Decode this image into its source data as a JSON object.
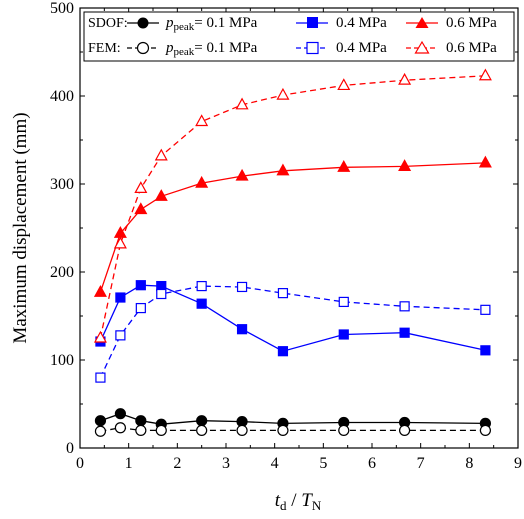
{
  "chart_data": {
    "type": "line",
    "xlabel_main": "t",
    "xlabel_sub1": "d",
    "xlabel_sep": " / ",
    "xlabel_main2": "T",
    "xlabel_sub2": "N",
    "ylabel": "Maximum displacement (mm)",
    "xlim": [
      0,
      9
    ],
    "ylim": [
      0,
      500
    ],
    "xticks": [
      0,
      1,
      2,
      3,
      4,
      5,
      6,
      7,
      8,
      9
    ],
    "yticks": [
      0,
      100,
      200,
      300,
      400,
      500
    ],
    "grid": false,
    "legend_position": "top",
    "legend": {
      "row1_head": "SDOF:",
      "row2_head": "FEM:",
      "p_main": "p",
      "p_sub": "peak",
      "p_eq": "= 0.1 MPa",
      "label_04": "0.4 MPa",
      "label_06": "0.6 MPa"
    },
    "series": [
      {
        "method": "SDOF",
        "pressure": "0.1 MPa",
        "color": "#000000",
        "marker": "circle",
        "filled": true,
        "dashed": false,
        "x": [
          0.42,
          0.83,
          1.25,
          1.67,
          2.5,
          3.33,
          4.17,
          5.42,
          6.67,
          8.33
        ],
        "y": [
          31,
          39,
          31,
          27,
          31,
          30,
          28,
          29,
          29,
          28
        ]
      },
      {
        "method": "SDOF",
        "pressure": "0.4 MPa",
        "color": "#0000ff",
        "marker": "square",
        "filled": true,
        "dashed": false,
        "x": [
          0.42,
          0.83,
          1.25,
          1.67,
          2.5,
          3.33,
          4.17,
          5.42,
          6.67,
          8.33
        ],
        "y": [
          121,
          171,
          185,
          184,
          164,
          135,
          110,
          129,
          131,
          111
        ]
      },
      {
        "method": "SDOF",
        "pressure": "0.6 MPa",
        "color": "#ff0000",
        "marker": "triangle",
        "filled": true,
        "dashed": false,
        "x": [
          0.42,
          0.83,
          1.25,
          1.67,
          2.5,
          3.33,
          4.17,
          5.42,
          6.67,
          8.33
        ],
        "y": [
          177,
          244,
          271,
          286,
          301,
          309,
          315,
          319,
          320,
          324
        ]
      },
      {
        "method": "FEM",
        "pressure": "0.1 MPa",
        "color": "#000000",
        "marker": "circle",
        "filled": false,
        "dashed": true,
        "x": [
          0.42,
          0.83,
          1.25,
          1.67,
          2.5,
          3.33,
          4.17,
          5.42,
          6.67,
          8.33
        ],
        "y": [
          19,
          23,
          20,
          20,
          20,
          20,
          20,
          20,
          20,
          20
        ]
      },
      {
        "method": "FEM",
        "pressure": "0.4 MPa",
        "color": "#0000ff",
        "marker": "square",
        "filled": false,
        "dashed": true,
        "x": [
          0.42,
          0.83,
          1.25,
          1.67,
          2.5,
          3.33,
          4.17,
          5.42,
          6.67,
          8.33
        ],
        "y": [
          80,
          128,
          159,
          175,
          184,
          183,
          176,
          166,
          161,
          157
        ]
      },
      {
        "method": "FEM",
        "pressure": "0.6 MPa",
        "color": "#ff0000",
        "marker": "triangle",
        "filled": false,
        "dashed": true,
        "x": [
          0.42,
          0.83,
          1.25,
          1.67,
          2.5,
          3.33,
          4.17,
          5.42,
          6.67,
          8.33
        ],
        "y": [
          125,
          232,
          295,
          332,
          371,
          390,
          401,
          412,
          418,
          423
        ]
      }
    ]
  }
}
